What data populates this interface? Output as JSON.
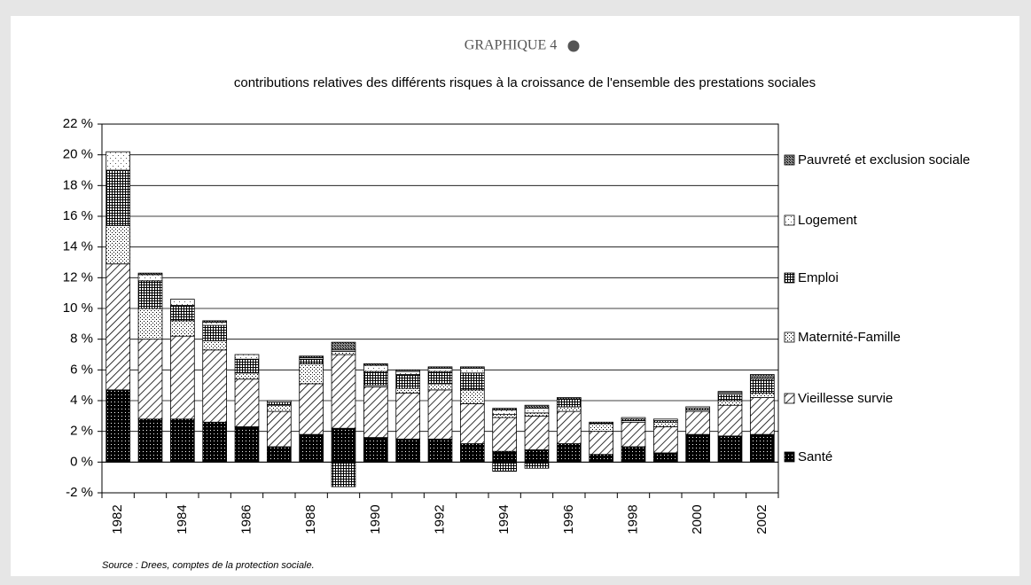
{
  "chart_data": {
    "type": "stacked_bar",
    "title": "GRAPHIQUE 4",
    "subtitle": "contributions relatives  des différents risques à la croissance de l'ensemble des prestations sociales",
    "source": "Source : Drees, comptes de la protection sociale.",
    "categories": [
      "1982",
      null,
      "1984",
      null,
      "1986",
      null,
      "1988",
      null,
      "1990",
      null,
      "1992",
      null,
      "1994",
      null,
      "1996",
      null,
      "1998",
      null,
      "2000",
      null,
      "2002"
    ],
    "series": [
      {
        "name": "Santé",
        "color": "#000000",
        "pattern": "dense-dots",
        "values": [
          4.7,
          2.8,
          2.8,
          2.6,
          2.3,
          1.0,
          1.8,
          2.2,
          1.6,
          1.5,
          1.5,
          1.2,
          0.7,
          0.8,
          1.2,
          0.5,
          1.0,
          0.6,
          1.8,
          1.7,
          1.8
        ]
      },
      {
        "name": "Vieillesse survie",
        "color": "#000000",
        "pattern": "diagonal",
        "values": [
          8.2,
          5.2,
          5.4,
          4.7,
          3.1,
          2.3,
          3.3,
          4.8,
          3.3,
          3.0,
          3.2,
          2.6,
          2.2,
          2.2,
          2.1,
          1.5,
          1.6,
          1.7,
          1.5,
          2.0,
          2.4
        ]
      },
      {
        "name": "Maternité-Famille",
        "color": "#000000",
        "pattern": "sparse-dots",
        "values": [
          2.5,
          2.0,
          1.0,
          0.6,
          0.4,
          0.4,
          1.3,
          0.2,
          0.1,
          0.3,
          0.4,
          0.9,
          0.2,
          0.2,
          0.3,
          0.5,
          0.1,
          0.3,
          0.1,
          0.3,
          0.3
        ]
      },
      {
        "name": "Emploi",
        "color": "#000000",
        "pattern": "grid",
        "values": [
          3.6,
          1.8,
          1.0,
          1.0,
          0.9,
          0.2,
          0.3,
          -1.6,
          0.9,
          0.9,
          0.8,
          1.1,
          -0.6,
          -0.4,
          0.5,
          0.1,
          0.1,
          0.1,
          0.1,
          0.4,
          0.9
        ]
      },
      {
        "name": "Logement",
        "color": "#000000",
        "pattern": "light-dots",
        "values": [
          1.2,
          0.4,
          0.4,
          0.2,
          0.3,
          0.1,
          0.1,
          0.1,
          0.4,
          0.2,
          0.2,
          0.3,
          0.3,
          0.3,
          0.0,
          0.0,
          0.1,
          0.1,
          0.1,
          0.1,
          0.1
        ]
      },
      {
        "name": "Pauvreté et exclusion sociale",
        "color": "#000000",
        "pattern": "crosshatch",
        "values": [
          0.0,
          0.1,
          0.0,
          0.1,
          0.0,
          0.0,
          0.1,
          0.5,
          0.1,
          0.1,
          0.1,
          0.1,
          0.1,
          0.2,
          0.1,
          0.0,
          0.0,
          0.0,
          0.0,
          0.1,
          0.2
        ]
      }
    ],
    "ylim": [
      -2,
      22
    ],
    "yticks": [
      {
        "value": -2,
        "label": "-2 %"
      },
      {
        "value": 0,
        "label": "0 %"
      },
      {
        "value": 2,
        "label": "2 %"
      },
      {
        "value": 4,
        "label": "4 %"
      },
      {
        "value": 6,
        "label": "6 %"
      },
      {
        "value": 8,
        "label": "8 %"
      },
      {
        "value": 10,
        "label": "10 %"
      },
      {
        "value": 12,
        "label": "12 %"
      },
      {
        "value": 14,
        "label": "14 %"
      },
      {
        "value": 16,
        "label": "16 %"
      },
      {
        "value": 18,
        "label": "18 %"
      },
      {
        "value": 20,
        "label": "20 %"
      },
      {
        "value": 22,
        "label": "22 %"
      }
    ],
    "grid": true,
    "legend": "right"
  }
}
